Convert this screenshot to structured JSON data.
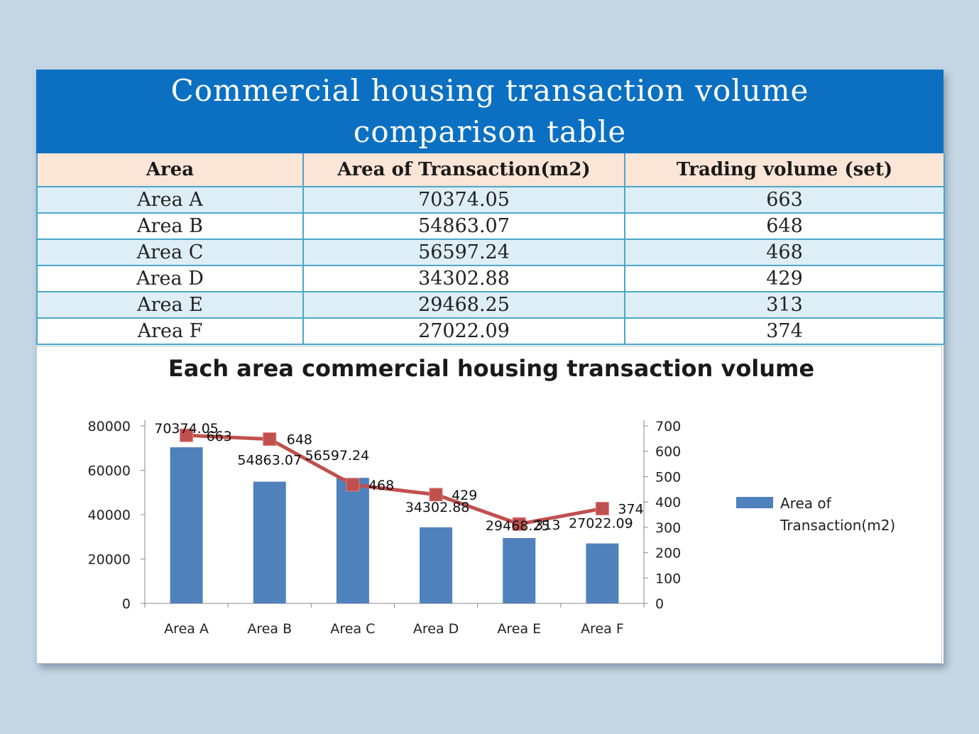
{
  "title": {
    "line1": "Commercial housing transaction volume",
    "line2": "comparison table"
  },
  "table": {
    "headers": [
      "Area",
      "Area of Transaction(m2)",
      "Trading volume (set)"
    ],
    "rows": [
      [
        "Area A",
        "70374.05",
        "663"
      ],
      [
        "Area B",
        "54863.07",
        "648"
      ],
      [
        "Area C",
        "56597.24",
        "468"
      ],
      [
        "Area D",
        "34302.88",
        "429"
      ],
      [
        "Area E",
        "29468.25",
        "313"
      ],
      [
        "Area F",
        "27022.09",
        "374"
      ]
    ]
  },
  "chart_data": {
    "type": "bar",
    "title": "Each area commercial housing transaction volume",
    "categories": [
      "Area A",
      "Area B",
      "Area C",
      "Area D",
      "Area E",
      "Area F"
    ],
    "series": [
      {
        "name": "Area of Transaction(m2)",
        "type": "bar",
        "axis": "left",
        "color": "#4f81bd",
        "values": [
          70374.05,
          54863.07,
          56597.24,
          34302.88,
          29468.25,
          27022.09
        ],
        "labels": [
          "70374.05",
          "54863.07",
          "56597.24",
          "34302.88",
          "29468.25",
          "27022.09"
        ]
      },
      {
        "type": "line",
        "axis": "right",
        "color": "#c0504d",
        "marker": "square",
        "values": [
          663,
          648,
          468,
          429,
          313,
          374
        ],
        "labels": [
          "663",
          "648",
          "468",
          "429",
          "313",
          "374"
        ]
      }
    ],
    "left_axis": {
      "min": 0,
      "max": 80000,
      "ticks": [
        "0",
        "20000",
        "40000",
        "60000",
        "80000"
      ]
    },
    "right_axis": {
      "min": 0,
      "max": 700,
      "ticks": [
        "0",
        "100",
        "200",
        "300",
        "400",
        "500",
        "600",
        "700"
      ]
    },
    "grid": false,
    "legend": {
      "position": "right",
      "lines": [
        "Area of",
        "Transaction(m2)"
      ]
    },
    "xlabel": "",
    "ylabel": ""
  }
}
